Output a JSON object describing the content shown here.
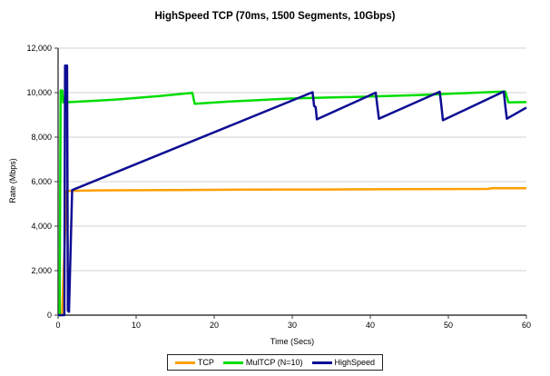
{
  "chart_data": {
    "type": "line",
    "title": "HighSpeed TCP (70ms, 1500 Segments, 10Gbps)",
    "xlabel": "Time (Secs)",
    "ylabel": "Rate (Mbps)",
    "xlim": [
      0,
      60
    ],
    "ylim": [
      0,
      12000
    ],
    "x_tick_values": [
      0,
      10,
      20,
      30,
      40,
      50,
      60
    ],
    "x_tick_labels": [
      "0",
      "10",
      "20",
      "30",
      "40",
      "50",
      "60"
    ],
    "y_tick_values": [
      0,
      2000,
      4000,
      6000,
      8000,
      10000,
      12000
    ],
    "y_tick_labels": [
      "0",
      "2,000",
      "4,000",
      "6,000",
      "8,000",
      "10,000",
      "12,000"
    ],
    "grid": true,
    "legend_position": "bottom-center",
    "axis_color": "#3a3a3a",
    "gridline_color": "#d3d3d3",
    "series": [
      {
        "name": "TCP",
        "color": "#ff9f00",
        "points": [
          [
            0,
            0
          ],
          [
            0.5,
            0
          ],
          [
            1.1,
            5580
          ],
          [
            5,
            5610
          ],
          [
            15,
            5625
          ],
          [
            25,
            5640
          ],
          [
            35,
            5650
          ],
          [
            45,
            5665
          ],
          [
            55,
            5675
          ],
          [
            55.6,
            5700
          ],
          [
            60,
            5705
          ]
        ]
      },
      {
        "name": "MulTCP (N=10)",
        "color": "#00dd00",
        "points": [
          [
            0,
            0
          ],
          [
            0.2,
            0
          ],
          [
            0.32,
            10100
          ],
          [
            0.52,
            10100
          ],
          [
            0.65,
            9560
          ],
          [
            3,
            9600
          ],
          [
            8,
            9700
          ],
          [
            13,
            9850
          ],
          [
            17.2,
            9990
          ],
          [
            17.5,
            9500
          ],
          [
            22,
            9600
          ],
          [
            30,
            9740
          ],
          [
            38,
            9810
          ],
          [
            46,
            9890
          ],
          [
            53,
            9990
          ],
          [
            57.3,
            10050
          ],
          [
            57.7,
            9560
          ],
          [
            60,
            9575
          ]
        ]
      },
      {
        "name": "HighSpeed",
        "color": "#0d0d94",
        "points": [
          [
            0,
            0
          ],
          [
            0.8,
            0
          ],
          [
            0.9,
            11216
          ],
          [
            1.15,
            11216
          ],
          [
            1.25,
            200
          ],
          [
            1.4,
            150
          ],
          [
            1.8,
            5620
          ],
          [
            32.6,
            10020
          ],
          [
            32.8,
            9400
          ],
          [
            33.0,
            9350
          ],
          [
            33.15,
            8800
          ],
          [
            40.7,
            10000
          ],
          [
            40.9,
            9420
          ],
          [
            41.1,
            8830
          ],
          [
            48.9,
            10040
          ],
          [
            49.1,
            9420
          ],
          [
            49.3,
            8760
          ],
          [
            57.1,
            10050
          ],
          [
            57.3,
            9380
          ],
          [
            57.5,
            8830
          ],
          [
            60,
            9330
          ]
        ]
      }
    ]
  }
}
